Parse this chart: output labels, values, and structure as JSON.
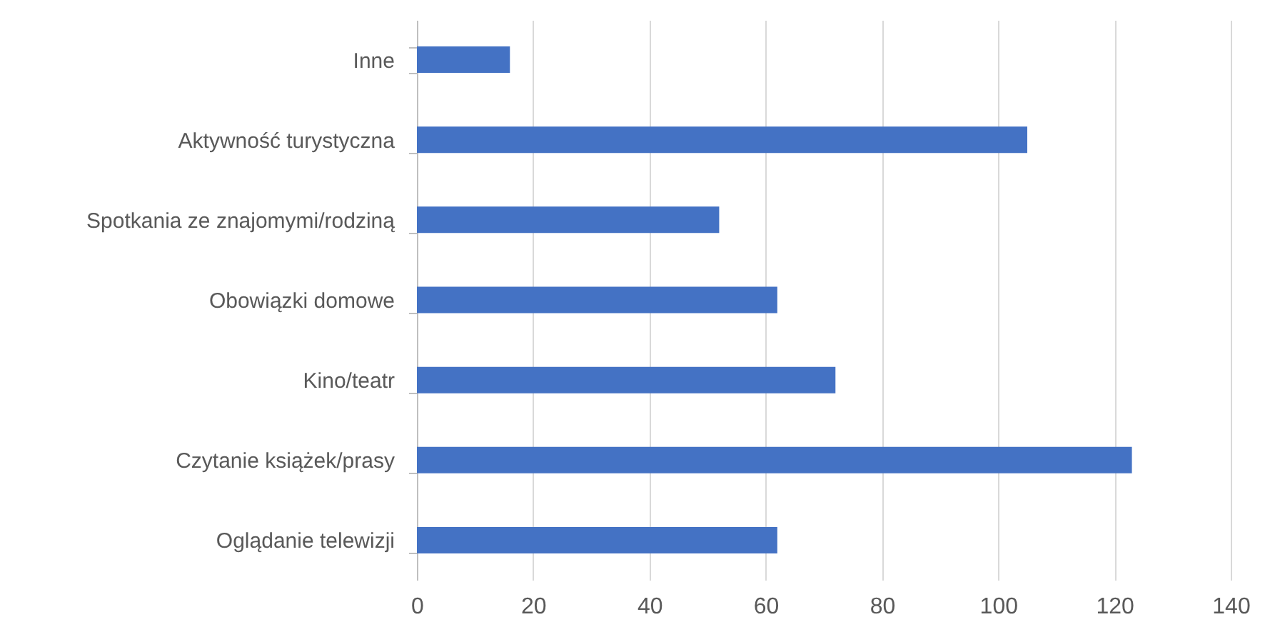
{
  "chart_data": {
    "type": "bar",
    "orientation": "horizontal",
    "categories": [
      "Inne",
      "Aktywność turystyczna",
      "Spotkania ze znajomymi/rodziną",
      "Obowiązki domowe",
      "Kino/teatr",
      "Czytanie książek/prasy",
      "Oglądanie telewizji"
    ],
    "values": [
      16,
      105,
      52,
      62,
      72,
      123,
      62
    ],
    "color": "#4472c4",
    "xlim": [
      0,
      140
    ],
    "xticks": [
      0,
      20,
      40,
      60,
      80,
      100,
      120,
      140
    ],
    "grid": "x"
  }
}
